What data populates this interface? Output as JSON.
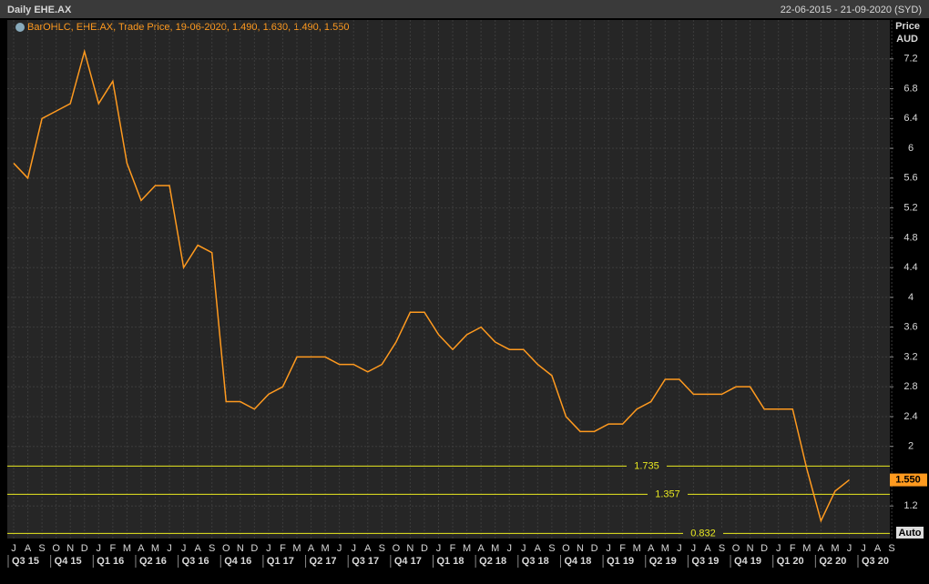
{
  "chart_data": {
    "type": "line",
    "title": "Daily EHE.AX",
    "date_range": "22-06-2015 - 21-09-2020 (SYD)",
    "legend_text": "BarOHLC, EHE.AX, Trade Price, 19-06-2020, 1.490, 1.630, 1.490, 1.550",
    "y_axis_label": [
      "Price",
      "AUD"
    ],
    "auto_button": "Auto",
    "ylim": [
      0.8,
      7.6
    ],
    "yticks": [
      1.2,
      2,
      2.4,
      2.8,
      3.2,
      3.6,
      4,
      4.4,
      4.8,
      5.2,
      5.6,
      6,
      6.4,
      6.8,
      7.2
    ],
    "grid": true,
    "series": [
      {
        "name": "EHE.AX",
        "color": "#ff9a1f",
        "x": [
          "2015-07",
          "2015-08",
          "2015-09",
          "2015-10",
          "2015-11",
          "2015-12",
          "2016-01",
          "2016-02",
          "2016-03",
          "2016-04",
          "2016-05",
          "2016-06",
          "2016-07",
          "2016-08",
          "2016-09",
          "2016-10",
          "2016-11",
          "2016-12",
          "2017-01",
          "2017-02",
          "2017-03",
          "2017-04",
          "2017-05",
          "2017-06",
          "2017-07",
          "2017-08",
          "2017-09",
          "2017-10",
          "2017-11",
          "2017-12",
          "2018-01",
          "2018-02",
          "2018-03",
          "2018-04",
          "2018-05",
          "2018-06",
          "2018-07",
          "2018-08",
          "2018-09",
          "2018-10",
          "2018-11",
          "2018-12",
          "2019-01",
          "2019-02",
          "2019-03",
          "2019-04",
          "2019-05",
          "2019-06",
          "2019-07",
          "2019-08",
          "2019-09",
          "2019-10",
          "2019-11",
          "2019-12",
          "2020-01",
          "2020-02",
          "2020-03",
          "2020-04",
          "2020-05",
          "2020-06"
        ],
        "values": [
          5.8,
          5.6,
          6.4,
          6.5,
          6.6,
          7.3,
          6.6,
          6.9,
          5.8,
          5.3,
          5.5,
          5.5,
          4.4,
          4.7,
          4.6,
          2.6,
          2.6,
          2.5,
          2.7,
          2.8,
          3.2,
          3.2,
          3.2,
          3.1,
          3.1,
          3.0,
          3.1,
          3.4,
          3.8,
          3.8,
          3.5,
          3.3,
          3.5,
          3.6,
          3.4,
          3.3,
          3.3,
          3.1,
          2.95,
          2.4,
          2.2,
          2.2,
          2.3,
          2.3,
          2.5,
          2.6,
          2.9,
          2.9,
          2.7,
          2.7,
          2.7,
          2.8,
          2.8,
          2.5,
          2.5,
          2.5,
          1.7,
          1.0,
          1.4,
          1.55
        ]
      }
    ],
    "last_price": {
      "value": 1.55,
      "label": "1.550"
    },
    "levels": [
      1.735,
      1.357,
      0.832
    ],
    "level_color": "#e8e820",
    "xticks": [
      {
        "value": "2015-07",
        "label": "J"
      },
      {
        "value": "2015-08",
        "label": "A"
      },
      {
        "value": "2015-09",
        "label": "S"
      },
      {
        "value": "2015-10",
        "label": "O"
      },
      {
        "value": "2015-11",
        "label": "N"
      },
      {
        "value": "2015-12",
        "label": "D"
      },
      {
        "value": "2016-01",
        "label": "J"
      },
      {
        "value": "2016-02",
        "label": "F"
      },
      {
        "value": "2016-03",
        "label": "M"
      },
      {
        "value": "2016-04",
        "label": "A"
      },
      {
        "value": "2016-05",
        "label": "M"
      },
      {
        "value": "2016-06",
        "label": "J"
      },
      {
        "value": "2016-07",
        "label": "J"
      },
      {
        "value": "2016-08",
        "label": "A"
      },
      {
        "value": "2016-09",
        "label": "S"
      },
      {
        "value": "2016-10",
        "label": "O"
      },
      {
        "value": "2016-11",
        "label": "N"
      },
      {
        "value": "2016-12",
        "label": "D"
      },
      {
        "value": "2017-01",
        "label": "J"
      },
      {
        "value": "2017-02",
        "label": "F"
      },
      {
        "value": "2017-03",
        "label": "M"
      },
      {
        "value": "2017-04",
        "label": "A"
      },
      {
        "value": "2017-05",
        "label": "M"
      },
      {
        "value": "2017-06",
        "label": "J"
      },
      {
        "value": "2017-07",
        "label": "J"
      },
      {
        "value": "2017-08",
        "label": "A"
      },
      {
        "value": "2017-09",
        "label": "S"
      },
      {
        "value": "2017-10",
        "label": "O"
      },
      {
        "value": "2017-11",
        "label": "N"
      },
      {
        "value": "2017-12",
        "label": "D"
      },
      {
        "value": "2018-01",
        "label": "J"
      },
      {
        "value": "2018-02",
        "label": "F"
      },
      {
        "value": "2018-03",
        "label": "M"
      },
      {
        "value": "2018-04",
        "label": "A"
      },
      {
        "value": "2018-05",
        "label": "M"
      },
      {
        "value": "2018-06",
        "label": "J"
      },
      {
        "value": "2018-07",
        "label": "J"
      },
      {
        "value": "2018-08",
        "label": "A"
      },
      {
        "value": "2018-09",
        "label": "S"
      },
      {
        "value": "2018-10",
        "label": "O"
      },
      {
        "value": "2018-11",
        "label": "N"
      },
      {
        "value": "2018-12",
        "label": "D"
      },
      {
        "value": "2019-01",
        "label": "J"
      },
      {
        "value": "2019-02",
        "label": "F"
      },
      {
        "value": "2019-03",
        "label": "M"
      },
      {
        "value": "2019-04",
        "label": "A"
      },
      {
        "value": "2019-05",
        "label": "M"
      },
      {
        "value": "2019-06",
        "label": "J"
      },
      {
        "value": "2019-07",
        "label": "J"
      },
      {
        "value": "2019-08",
        "label": "A"
      },
      {
        "value": "2019-09",
        "label": "S"
      },
      {
        "value": "2019-10",
        "label": "O"
      },
      {
        "value": "2019-11",
        "label": "N"
      },
      {
        "value": "2019-12",
        "label": "D"
      },
      {
        "value": "2020-01",
        "label": "J"
      },
      {
        "value": "2020-02",
        "label": "F"
      },
      {
        "value": "2020-03",
        "label": "M"
      },
      {
        "value": "2020-04",
        "label": "A"
      },
      {
        "value": "2020-05",
        "label": "M"
      },
      {
        "value": "2020-06",
        "label": "J"
      },
      {
        "value": "2020-07",
        "label": "J"
      },
      {
        "value": "2020-08",
        "label": "A"
      },
      {
        "value": "2020-09",
        "label": "S"
      }
    ],
    "quarters": [
      {
        "value": "2015-07",
        "label": "Q3 15"
      },
      {
        "value": "2015-10",
        "label": "Q4 15"
      },
      {
        "value": "2016-01",
        "label": "Q1 16"
      },
      {
        "value": "2016-04",
        "label": "Q2 16"
      },
      {
        "value": "2016-07",
        "label": "Q3 16"
      },
      {
        "value": "2016-10",
        "label": "Q4 16"
      },
      {
        "value": "2017-01",
        "label": "Q1 17"
      },
      {
        "value": "2017-04",
        "label": "Q2 17"
      },
      {
        "value": "2017-07",
        "label": "Q3 17"
      },
      {
        "value": "2017-10",
        "label": "Q4 17"
      },
      {
        "value": "2018-01",
        "label": "Q1 18"
      },
      {
        "value": "2018-04",
        "label": "Q2 18"
      },
      {
        "value": "2018-07",
        "label": "Q3 18"
      },
      {
        "value": "2018-10",
        "label": "Q4 18"
      },
      {
        "value": "2019-01",
        "label": "Q1 19"
      },
      {
        "value": "2019-04",
        "label": "Q2 19"
      },
      {
        "value": "2019-07",
        "label": "Q3 19"
      },
      {
        "value": "2019-10",
        "label": "Q4 19"
      },
      {
        "value": "2020-01",
        "label": "Q1 20"
      },
      {
        "value": "2020-04",
        "label": "Q2 20"
      },
      {
        "value": "2020-07",
        "label": "Q3 20"
      }
    ]
  }
}
